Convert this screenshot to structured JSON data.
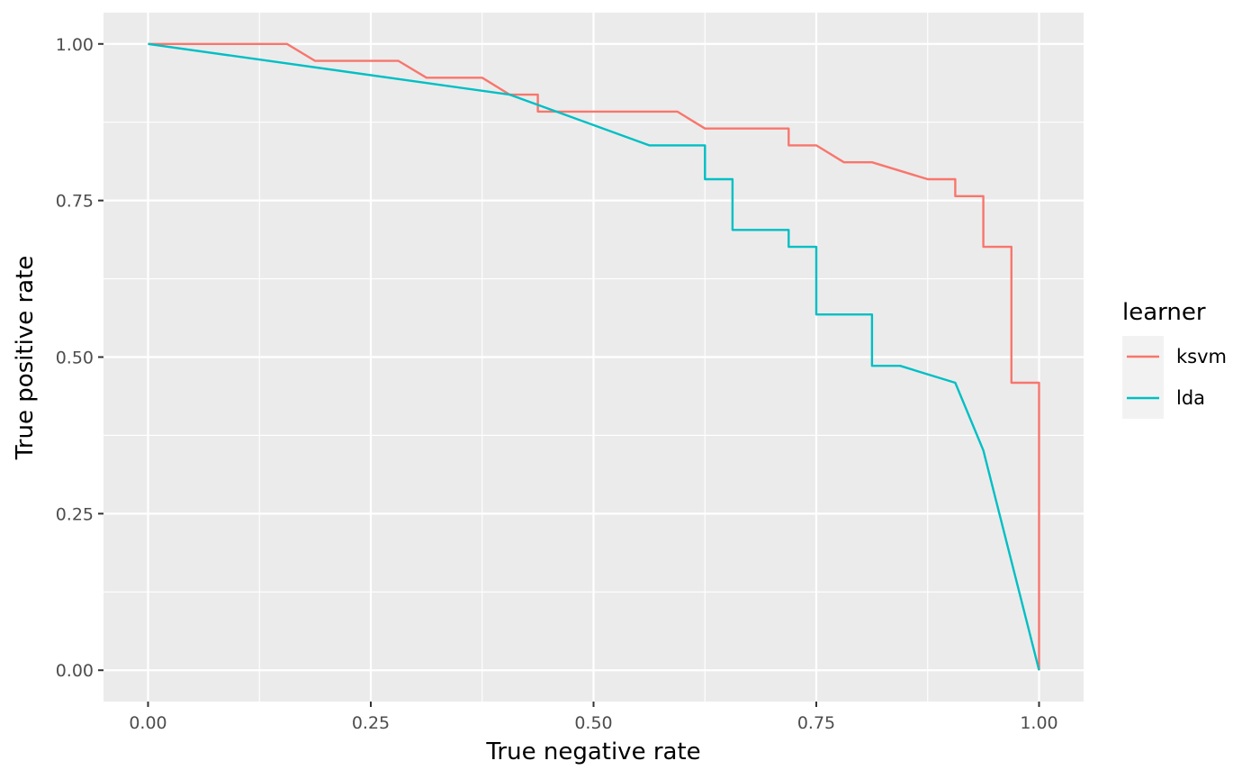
{
  "chart_data": {
    "type": "line",
    "xlabel": "True negative rate",
    "ylabel": "True positive rate",
    "xlim": [
      -0.05,
      1.05
    ],
    "ylim": [
      -0.05,
      1.05
    ],
    "x_ticks": [
      0,
      0.25,
      0.5,
      0.75,
      1
    ],
    "x_tick_labels": [
      "0.00",
      "0.25",
      "0.50",
      "0.75",
      "1.00"
    ],
    "y_ticks": [
      0,
      0.25,
      0.5,
      0.75,
      1
    ],
    "y_tick_labels": [
      "0.00",
      "0.25",
      "0.50",
      "0.75",
      "1.00"
    ],
    "grid": true,
    "legend": {
      "title": "learner",
      "position": "right"
    },
    "series": [
      {
        "name": "ksvm",
        "color": "#F8766D",
        "points": [
          [
            0,
            1
          ],
          [
            0.156,
            1
          ],
          [
            0.1875,
            0.973
          ],
          [
            0.281,
            0.973
          ],
          [
            0.3125,
            0.946
          ],
          [
            0.375,
            0.946
          ],
          [
            0.406,
            0.919
          ],
          [
            0.4375,
            0.919
          ],
          [
            0.4375,
            0.892
          ],
          [
            0.594,
            0.892
          ],
          [
            0.625,
            0.865
          ],
          [
            0.719,
            0.865
          ],
          [
            0.719,
            0.838
          ],
          [
            0.75,
            0.838
          ],
          [
            0.781,
            0.811
          ],
          [
            0.8125,
            0.811
          ],
          [
            0.875,
            0.784
          ],
          [
            0.906,
            0.784
          ],
          [
            0.906,
            0.757
          ],
          [
            0.9375,
            0.757
          ],
          [
            0.9375,
            0.676
          ],
          [
            0.969,
            0.676
          ],
          [
            0.969,
            0.459
          ],
          [
            1,
            0.459
          ],
          [
            1,
            0
          ]
        ]
      },
      {
        "name": "lda",
        "color": "#00BFC4",
        "points": [
          [
            0,
            1
          ],
          [
            0.406,
            0.919
          ],
          [
            0.5625,
            0.838
          ],
          [
            0.625,
            0.838
          ],
          [
            0.625,
            0.784
          ],
          [
            0.656,
            0.784
          ],
          [
            0.656,
            0.703
          ],
          [
            0.719,
            0.703
          ],
          [
            0.719,
            0.676
          ],
          [
            0.75,
            0.676
          ],
          [
            0.75,
            0.568
          ],
          [
            0.8125,
            0.568
          ],
          [
            0.8125,
            0.486
          ],
          [
            0.844,
            0.486
          ],
          [
            0.906,
            0.459
          ],
          [
            0.9375,
            0.351
          ],
          [
            1,
            0
          ]
        ]
      }
    ]
  }
}
